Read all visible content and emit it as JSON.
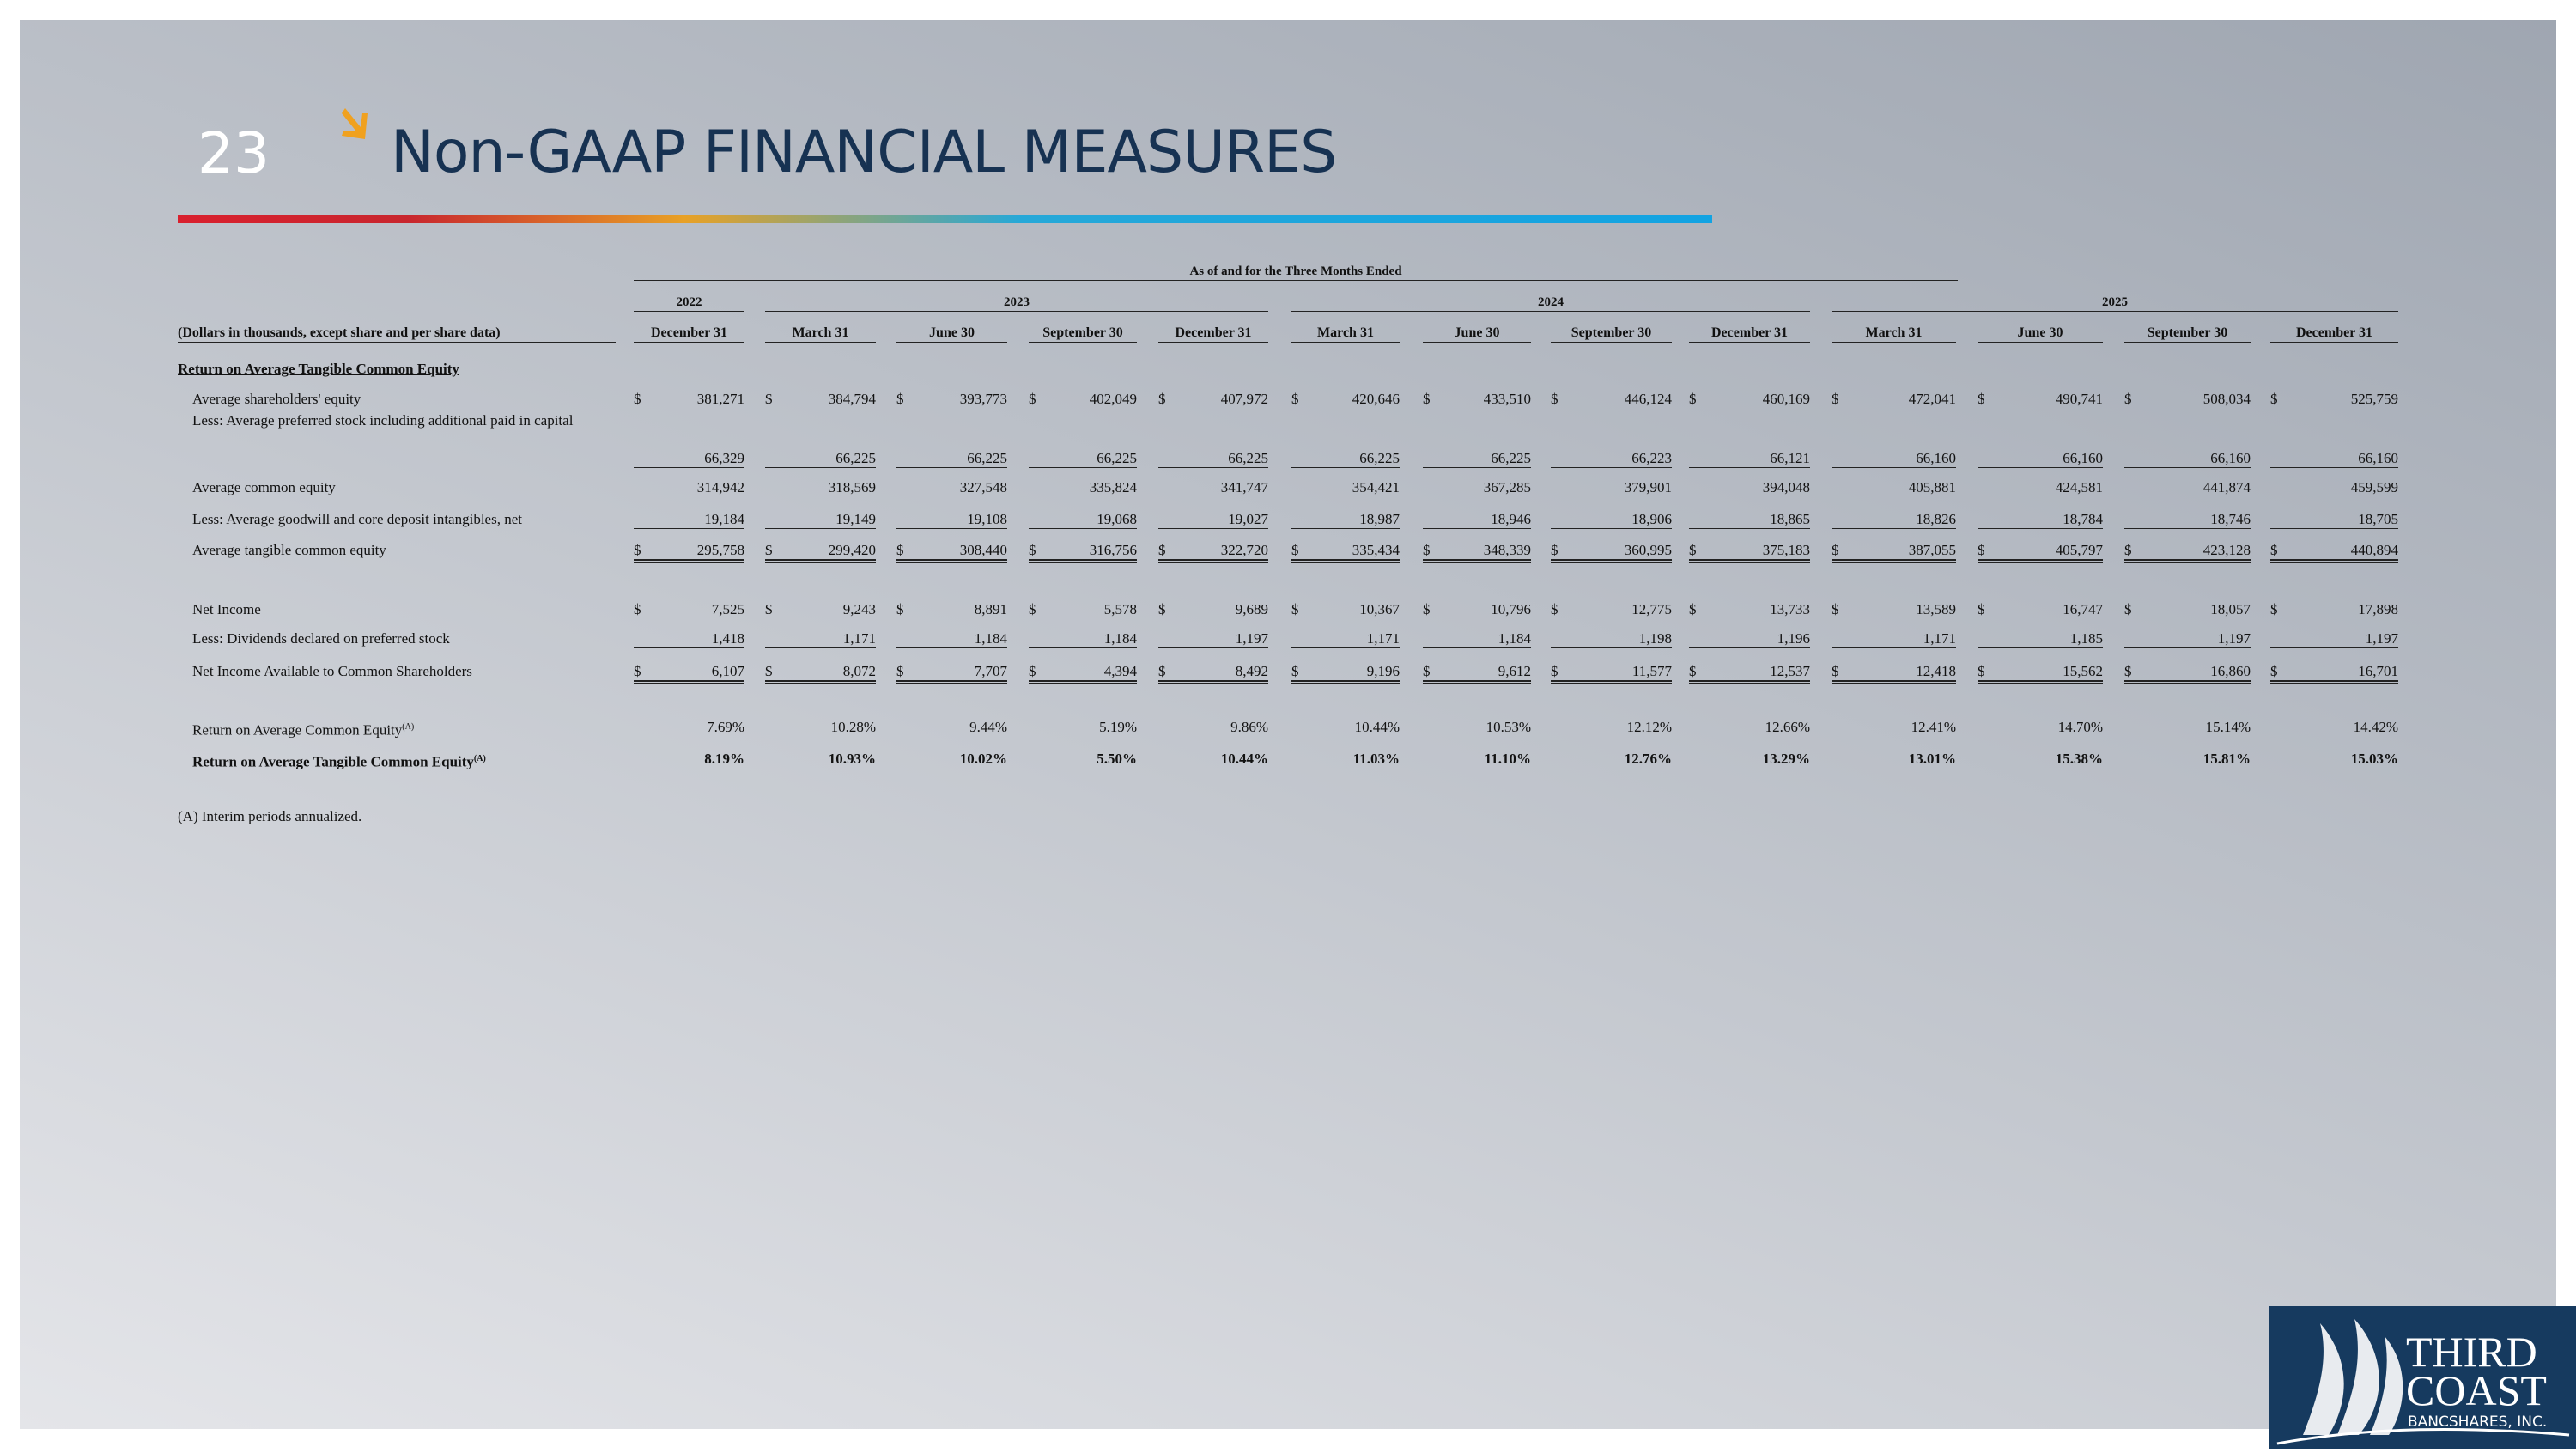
{
  "page_number": "23",
  "title": "Non-GAAP FINANCIAL MEASURES",
  "table": {
    "group_header": "As of and for the Three Months Ended",
    "years": [
      "2022",
      "2023",
      "2024",
      "2025"
    ],
    "unit_label": "(Dollars in thousands, except share and per share data)",
    "columns": [
      "December 31",
      "March 31",
      "June 30",
      "September 30",
      "December 31",
      "March 31",
      "June 30",
      "September 30",
      "December 31",
      "March 31",
      "June 30",
      "September 30",
      "December 31"
    ],
    "section": "Return on Average Tangible Common Equity",
    "rows": [
      {
        "label": "Average shareholders' equity",
        "currency": "$",
        "values": [
          "381,271",
          "384,794",
          "393,773",
          "402,049",
          "407,972",
          "420,646",
          "433,510",
          "446,124",
          "460,169",
          "472,041",
          "490,741",
          "508,034",
          "525,759"
        ]
      },
      {
        "label": "Less:  Average preferred stock including additional paid in capital",
        "values": [
          "66,329",
          "66,225",
          "66,225",
          "66,225",
          "66,225",
          "66,225",
          "66,225",
          "66,223",
          "66,121",
          "66,160",
          "66,160",
          "66,160",
          "66,160"
        ]
      },
      {
        "label": "Average common equity",
        "values": [
          "314,942",
          "318,569",
          "327,548",
          "335,824",
          "341,747",
          "354,421",
          "367,285",
          "379,901",
          "394,048",
          "405,881",
          "424,581",
          "441,874",
          "459,599"
        ]
      },
      {
        "label": "Less:  Average goodwill and core deposit intangibles, net",
        "values": [
          "19,184",
          "19,149",
          "19,108",
          "19,068",
          "19,027",
          "18,987",
          "18,946",
          "18,906",
          "18,865",
          "18,826",
          "18,784",
          "18,746",
          "18,705"
        ]
      },
      {
        "label": "Average tangible common equity",
        "currency": "$",
        "values": [
          "295,758",
          "299,420",
          "308,440",
          "316,756",
          "322,720",
          "335,434",
          "348,339",
          "360,995",
          "375,183",
          "387,055",
          "405,797",
          "423,128",
          "440,894"
        ]
      },
      {
        "label": "Net Income",
        "currency": "$",
        "values": [
          "7,525",
          "9,243",
          "8,891",
          "5,578",
          "9,689",
          "10,367",
          "10,796",
          "12,775",
          "13,733",
          "13,589",
          "16,747",
          "18,057",
          "17,898"
        ]
      },
      {
        "label": "Less: Dividends declared on preferred stock",
        "values": [
          "1,418",
          "1,171",
          "1,184",
          "1,184",
          "1,197",
          "1,171",
          "1,184",
          "1,198",
          "1,196",
          "1,171",
          "1,185",
          "1,197",
          "1,197"
        ]
      },
      {
        "label": "Net Income Available to Common Shareholders",
        "currency": "$",
        "values": [
          "6,107",
          "8,072",
          "7,707",
          "4,394",
          "8,492",
          "9,196",
          "9,612",
          "11,577",
          "12,537",
          "12,418",
          "15,562",
          "16,860",
          "16,701"
        ]
      },
      {
        "label": "Return on Average Common Equity",
        "note": "(A)",
        "values": [
          "7.69%",
          "10.28%",
          "9.44%",
          "5.19%",
          "9.86%",
          "10.44%",
          "10.53%",
          "12.12%",
          "12.66%",
          "12.41%",
          "14.70%",
          "15.14%",
          "14.42%"
        ]
      },
      {
        "label": "Return on Average Tangible Common Equity",
        "note": "(A)",
        "values": [
          "8.19%",
          "10.93%",
          "10.02%",
          "5.50%",
          "10.44%",
          "11.03%",
          "11.10%",
          "12.76%",
          "13.29%",
          "13.01%",
          "15.38%",
          "15.81%",
          "15.03%"
        ]
      }
    ]
  },
  "footnote": "(A)  Interim periods annualized.",
  "logo": {
    "line1": "THIRD",
    "line2": "COAST",
    "line3": "BANCSHARES, INC."
  }
}
